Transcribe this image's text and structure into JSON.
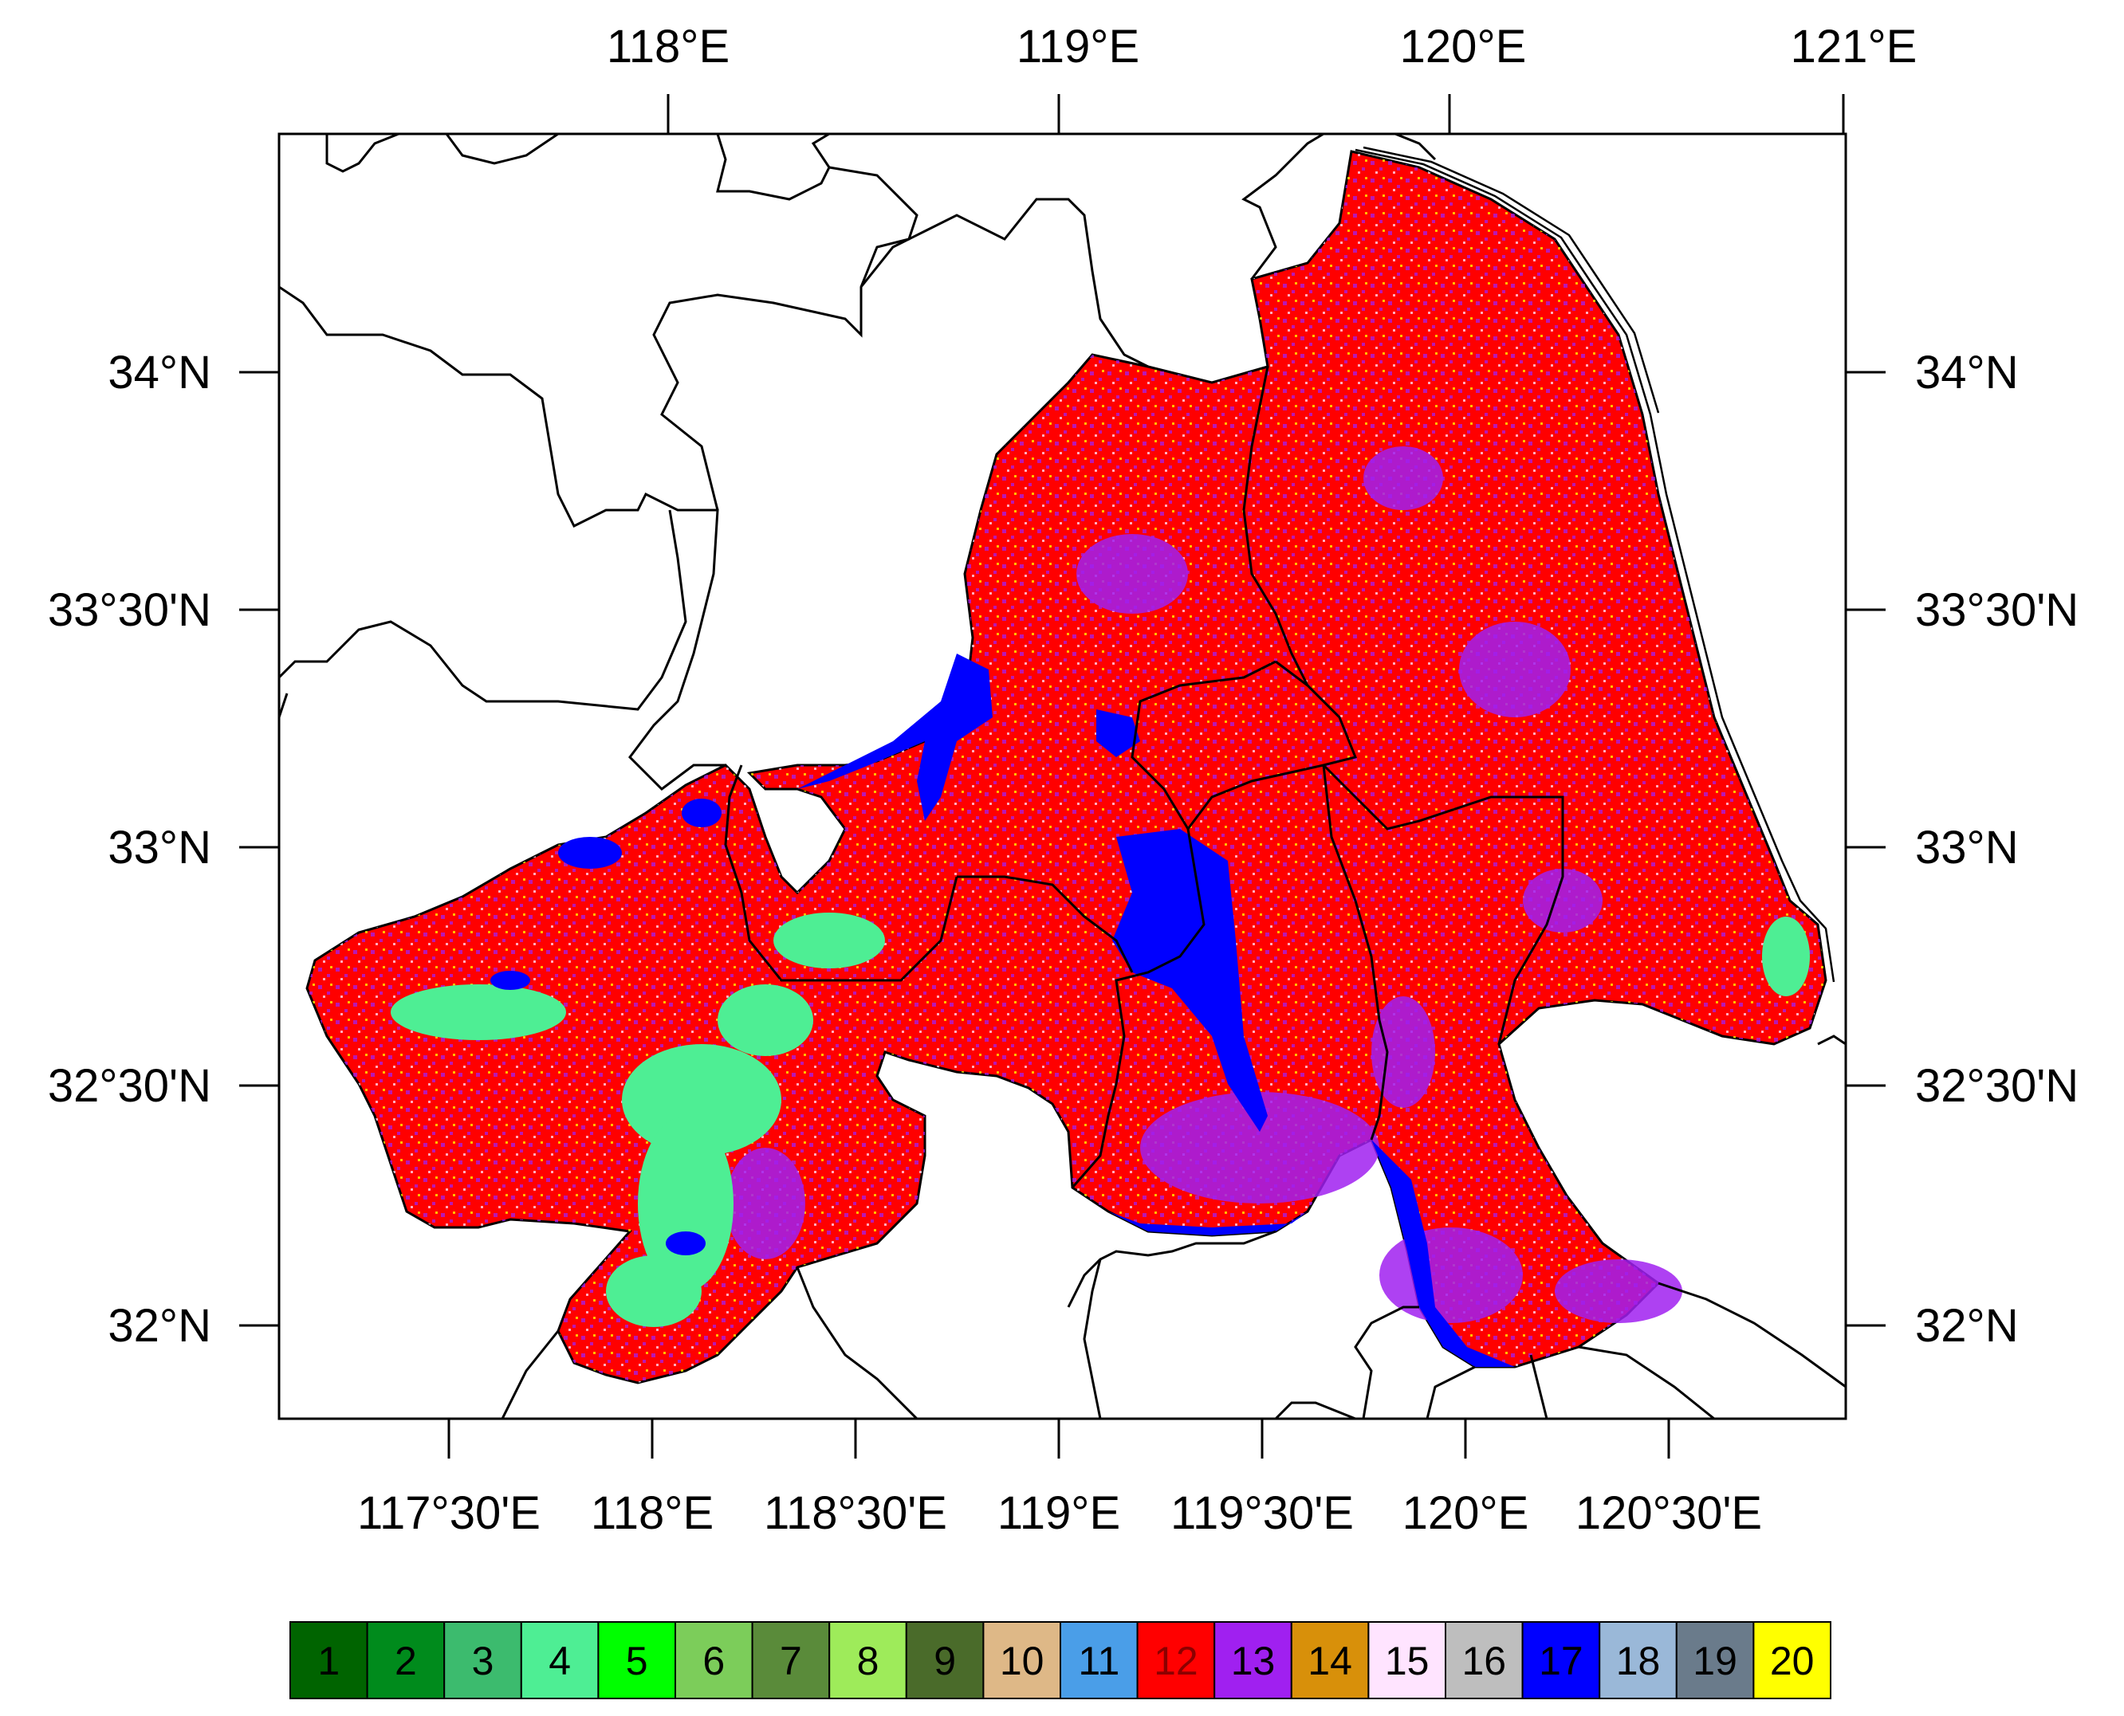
{
  "map": {
    "top_lon_labels": [
      "118°E",
      "119°E",
      "120°E",
      "121°E"
    ],
    "bottom_lon_labels": [
      "117°30'E",
      "118°E",
      "118°30'E",
      "119°E",
      "119°30'E",
      "120°E",
      "120°30'E"
    ],
    "left_lat_labels": [
      "34°N",
      "33°30'N",
      "33°N",
      "32°30'N",
      "32°N"
    ],
    "right_lat_labels": [
      "34°N",
      "33°30'N",
      "33°N",
      "32°30'N",
      "32°N"
    ]
  },
  "legend": {
    "classes": [
      {
        "label": "1",
        "color": "#006400"
      },
      {
        "label": "2",
        "color": "#008b1c"
      },
      {
        "label": "3",
        "color": "#3cbb6e"
      },
      {
        "label": "4",
        "color": "#4eee94"
      },
      {
        "label": "5",
        "color": "#00ff00"
      },
      {
        "label": "6",
        "color": "#7ccd5a"
      },
      {
        "label": "7",
        "color": "#5a8b3a"
      },
      {
        "label": "8",
        "color": "#9eeb5a"
      },
      {
        "label": "9",
        "color": "#4a6b2a"
      },
      {
        "label": "10",
        "color": "#deb887"
      },
      {
        "label": "11",
        "color": "#4a9ee8"
      },
      {
        "label": "12",
        "color": "#ff0000"
      },
      {
        "label": "13",
        "color": "#a020f0"
      },
      {
        "label": "14",
        "color": "#d8900a"
      },
      {
        "label": "15",
        "color": "#ffe4ff"
      },
      {
        "label": "16",
        "color": "#bebebe"
      },
      {
        "label": "17",
        "color": "#0000ff"
      },
      {
        "label": "18",
        "color": "#9ab8d8"
      },
      {
        "label": "19",
        "color": "#6a7b8b"
      },
      {
        "label": "20",
        "color": "#ffff00"
      }
    ]
  }
}
